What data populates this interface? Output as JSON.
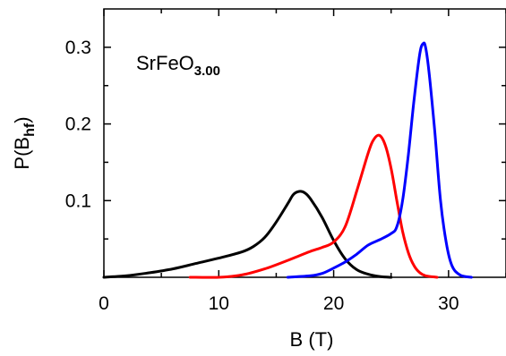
{
  "chart_data": {
    "type": "line",
    "xlabel": "B (T)",
    "ylabel_main": "P(B",
    "ylabel_sub": "hf",
    "ylabel_close": ")",
    "annotation_main": "SrFeO",
    "annotation_sub": "3.00",
    "xlim": [
      0,
      35
    ],
    "ylim": [
      0,
      0.35
    ],
    "xticks": [
      0,
      10,
      20,
      30
    ],
    "xtick_labels": [
      "0",
      "10",
      "20",
      "30"
    ],
    "yticks": [
      0.1,
      0.2,
      0.3
    ],
    "ytick_labels": [
      "0.1",
      "0.2",
      "0.3"
    ],
    "grid": false,
    "series": [
      {
        "color": "#000000",
        "points": [
          [
            0,
            0.0
          ],
          [
            2,
            0.002
          ],
          [
            4,
            0.006
          ],
          [
            6,
            0.011
          ],
          [
            8,
            0.018
          ],
          [
            10,
            0.025
          ],
          [
            12,
            0.033
          ],
          [
            13,
            0.04
          ],
          [
            14,
            0.052
          ],
          [
            15,
            0.072
          ],
          [
            16,
            0.096
          ],
          [
            16.5,
            0.108
          ],
          [
            17,
            0.112
          ],
          [
            17.5,
            0.11
          ],
          [
            18,
            0.102
          ],
          [
            19,
            0.078
          ],
          [
            20,
            0.048
          ],
          [
            21,
            0.024
          ],
          [
            22,
            0.01
          ],
          [
            23,
            0.004
          ],
          [
            24,
            0.001
          ],
          [
            25,
            0.0
          ]
        ]
      },
      {
        "color": "#ff0000",
        "points": [
          [
            7.5,
            0.0
          ],
          [
            10,
            0.0
          ],
          [
            12,
            0.003
          ],
          [
            14,
            0.011
          ],
          [
            16,
            0.022
          ],
          [
            17,
            0.028
          ],
          [
            18,
            0.034
          ],
          [
            19,
            0.039
          ],
          [
            20,
            0.046
          ],
          [
            21,
            0.066
          ],
          [
            22,
            0.112
          ],
          [
            23,
            0.162
          ],
          [
            23.5,
            0.18
          ],
          [
            24,
            0.185
          ],
          [
            24.5,
            0.172
          ],
          [
            25,
            0.142
          ],
          [
            25.5,
            0.1
          ],
          [
            26,
            0.06
          ],
          [
            26.5,
            0.032
          ],
          [
            27,
            0.015
          ],
          [
            27.5,
            0.006
          ],
          [
            28,
            0.002
          ],
          [
            29,
            0.0
          ]
        ]
      },
      {
        "color": "#0000ff",
        "points": [
          [
            16,
            0.0
          ],
          [
            18,
            0.002
          ],
          [
            19,
            0.005
          ],
          [
            20,
            0.012
          ],
          [
            21,
            0.02
          ],
          [
            22,
            0.03
          ],
          [
            23,
            0.042
          ],
          [
            24,
            0.049
          ],
          [
            25,
            0.057
          ],
          [
            25.5,
            0.066
          ],
          [
            26,
            0.1
          ],
          [
            26.5,
            0.16
          ],
          [
            27,
            0.232
          ],
          [
            27.5,
            0.292
          ],
          [
            27.8,
            0.305
          ],
          [
            28,
            0.3
          ],
          [
            28.3,
            0.268
          ],
          [
            28.8,
            0.19
          ],
          [
            29.3,
            0.1
          ],
          [
            29.8,
            0.045
          ],
          [
            30.3,
            0.015
          ],
          [
            31,
            0.003
          ],
          [
            32,
            0.0
          ]
        ]
      }
    ]
  }
}
